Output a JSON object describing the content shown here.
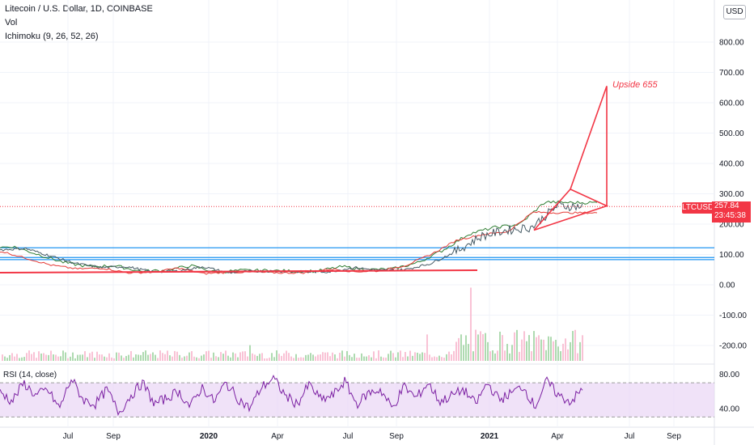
{
  "header": {
    "title": "Litecoin / U.S. Dollar, 1D, COINBASE",
    "indicator_vol": "Vol",
    "indicator_ichimoku": "Ichimoku (9, 26, 52, 26)"
  },
  "currency_button": "USD",
  "symbol_tag": "LTCUSD",
  "last_price": "257.84",
  "countdown": "23:45:38",
  "rsi_title": "RSI (14, close)",
  "annotation": "Upside 655",
  "colors": {
    "candle_up": "#26a69a",
    "candle_down": "#ef5350",
    "ichimoku_span_a": "#2e7d32",
    "ichimoku_span_b": "#e53935",
    "ichimoku_conv": "#1565c0",
    "horizontal_lines": "#2196f3",
    "drawing": "#f23645",
    "rsi": "#7b1fa2",
    "rsi_band": "#e9d5f5"
  },
  "chart_data": [
    {
      "type": "line",
      "title": "Litecoin / U.S. Dollar, 1D, COINBASE",
      "x": [
        "2019-06-01",
        "2019-07-01",
        "2019-08-01",
        "2019-09-01",
        "2019-10-01",
        "2019-11-01",
        "2019-12-01",
        "2020-01-01",
        "2020-02-01",
        "2020-03-01",
        "2020-04-01",
        "2020-05-01",
        "2020-06-01",
        "2020-07-01",
        "2020-08-01",
        "2020-09-01",
        "2020-10-01",
        "2020-11-01",
        "2020-12-01",
        "2021-01-01",
        "2021-02-01",
        "2021-03-01",
        "2021-04-01",
        "2021-04-20"
      ],
      "series": [
        {
          "name": "LTCUSD",
          "values": [
            115,
            120,
            95,
            70,
            57,
            60,
            43,
            45,
            60,
            40,
            45,
            45,
            43,
            43,
            57,
            47,
            50,
            70,
            110,
            160,
            180,
            190,
            260,
            258
          ]
        }
      ],
      "y_ticks": [
        "800.00",
        "700.00",
        "600.00",
        "500.00",
        "400.00",
        "300.00",
        "200.00",
        "100.00",
        "0.00",
        "-100.00",
        "-200.00"
      ],
      "x_ticks": [
        "Jul",
        "Sep",
        "2020",
        "Apr",
        "Jul",
        "Sep",
        "2021",
        "Apr",
        "Jul",
        "Sep"
      ],
      "ylim": [
        -230,
        900
      ],
      "horizontal_levels": [
        122,
        90,
        83
      ],
      "annotation": "Upside 655",
      "target": 655
    },
    {
      "type": "line",
      "title": "RSI (14, close)",
      "series": [
        {
          "name": "RSI",
          "values": [
            60,
            48,
            70,
            55,
            62,
            40,
            75,
            50,
            45,
            62,
            35,
            55,
            70,
            45,
            52,
            60,
            42,
            65,
            48,
            70,
            52,
            40,
            65,
            75,
            55,
            45,
            68,
            50,
            55,
            72,
            45,
            58,
            62,
            40,
            66,
            52,
            70,
            48,
            55,
            62,
            45,
            70,
            50,
            58,
            66,
            42,
            72,
            55,
            48,
            62
          ]
        }
      ],
      "y_ticks": [
        "80.00",
        "40.00"
      ],
      "band": [
        30,
        70
      ],
      "ylim": [
        20,
        90
      ]
    }
  ]
}
